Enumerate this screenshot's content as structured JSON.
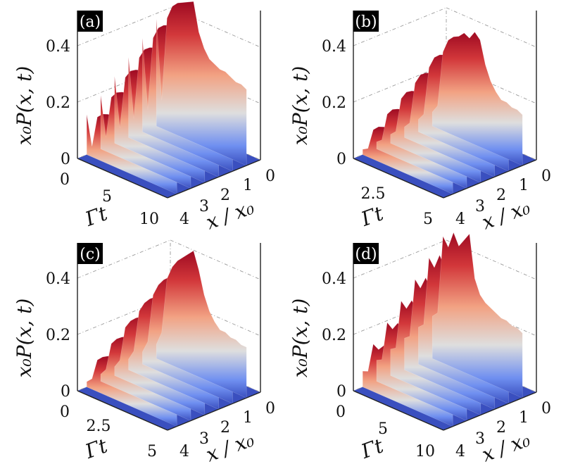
{
  "chart_data": [
    {
      "type": "surface3d",
      "panel_label": "(a)",
      "zlabel": "x₀P(x, t)",
      "xlabel": "x / x₀",
      "tlabel": "Γt",
      "z_ticks": [
        "0",
        "0.2",
        "0.4"
      ],
      "x_ticks": [
        "0",
        "1",
        "2",
        "3",
        "4"
      ],
      "t_ticks": [
        "0",
        "5",
        "10"
      ],
      "zlim": [
        0,
        0.5
      ],
      "xlim": [
        0,
        4
      ],
      "tlim": [
        0,
        10
      ],
      "colormap": [
        "#3a4fbf",
        "#7e9af2",
        "#dcdcdc",
        "#f09a75",
        "#c9202f",
        "#9e0a22"
      ],
      "peaks": [
        0.38,
        0.1,
        0.4,
        0.45,
        0.47,
        0.48,
        0.49,
        0.5,
        0.4,
        0.35,
        0.32,
        0.31,
        0.3,
        0.3,
        0.29,
        0.28,
        0.28,
        0.27
      ],
      "ridge_x": [
        0.6,
        1.2,
        1.8,
        2.4,
        3.0,
        3.6
      ]
    },
    {
      "type": "surface3d",
      "panel_label": "(b)",
      "zlabel": "x₀P(x, t)",
      "xlabel": "x / x₀",
      "tlabel": "Γt",
      "z_ticks": [
        "0",
        "0.2",
        "0.4"
      ],
      "x_ticks": [
        "0",
        "1",
        "2",
        "3",
        "4"
      ],
      "t_ticks": [
        "2.5",
        "5"
      ],
      "zlim": [
        0,
        0.5
      ],
      "xlim": [
        0,
        4
      ],
      "tlim": [
        0,
        5
      ],
      "colormap": [
        "#3a4fbf",
        "#7e9af2",
        "#dcdcdc",
        "#f09a75",
        "#c9202f",
        "#9e0a22"
      ],
      "peaks": [
        0.05,
        0.08,
        0.28,
        0.33,
        0.35,
        0.36,
        0.38,
        0.37,
        0.4,
        0.38,
        0.3,
        0.25,
        0.22,
        0.2,
        0.2,
        0.19,
        0.19,
        0.18
      ],
      "ridge_x": [
        0.6,
        1.2,
        1.8,
        2.4,
        3.0,
        3.6
      ]
    },
    {
      "type": "surface3d",
      "panel_label": "(c)",
      "zlabel": "x₀P(x, t)",
      "xlabel": "x / x₀",
      "tlabel": "Γt",
      "z_ticks": [
        "0",
        "0.2",
        "0.4"
      ],
      "x_ticks": [
        "0",
        "1",
        "2",
        "3",
        "4"
      ],
      "t_ticks": [
        "0",
        "2.5",
        "5"
      ],
      "zlim": [
        0,
        0.5
      ],
      "xlim": [
        0,
        4
      ],
      "tlim": [
        0,
        5
      ],
      "colormap": [
        "#3a4fbf",
        "#7e9af2",
        "#dcdcdc",
        "#f09a75",
        "#c9202f",
        "#9e0a22"
      ],
      "peaks": [
        0.05,
        0.1,
        0.3,
        0.35,
        0.38,
        0.4,
        0.42,
        0.44,
        0.38,
        0.3,
        0.25,
        0.22,
        0.2,
        0.2,
        0.19,
        0.19,
        0.18,
        0.18
      ],
      "ridge_x": [
        0.6,
        1.2,
        1.8,
        2.4,
        3.0,
        3.6
      ]
    },
    {
      "type": "surface3d",
      "panel_label": "(d)",
      "zlabel": "x₀P(x, t)",
      "xlabel": "x / x₀",
      "tlabel": "Γt",
      "z_ticks": [
        "0",
        "0.2",
        "0.4"
      ],
      "x_ticks": [
        "0",
        "1",
        "2",
        "3",
        "4"
      ],
      "t_ticks": [
        "0",
        "5",
        "10"
      ],
      "zlim": [
        0,
        0.5
      ],
      "xlim": [
        0,
        4
      ],
      "tlim": [
        0,
        10
      ],
      "colormap": [
        "#3a4fbf",
        "#7e9af2",
        "#dcdcdc",
        "#f09a75",
        "#c9202f",
        "#9e0a22"
      ],
      "peaks": [
        0.15,
        0.17,
        0.45,
        0.42,
        0.48,
        0.44,
        0.47,
        0.5,
        0.35,
        0.3,
        0.28,
        0.27,
        0.26,
        0.25,
        0.25,
        0.24,
        0.24,
        0.23
      ],
      "ridge_x": [
        0.6,
        1.2,
        1.8,
        2.4,
        3.0,
        3.6
      ]
    }
  ]
}
